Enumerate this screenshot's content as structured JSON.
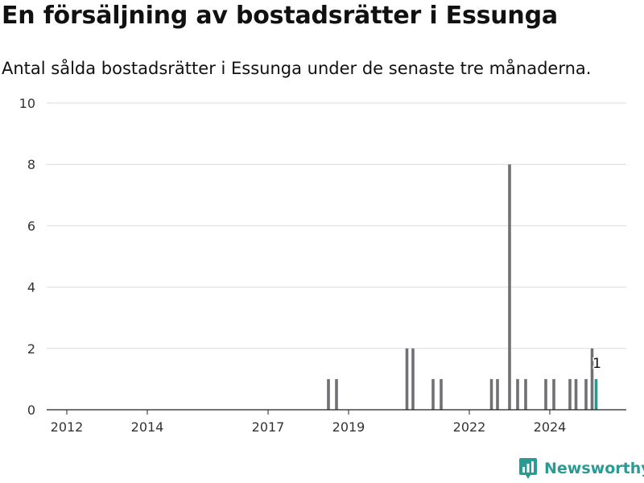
{
  "title": "En försäljning av bostadsrätter i Essunga",
  "subtitle": "Antal sålda bostadsrätter i Essunga under de senaste tre månaderna.",
  "brand": "Newsworthy",
  "colors": {
    "bar": "#707075",
    "highlight": "#1e9c94",
    "grid": "#dcdcdc",
    "axis": "#222222",
    "brand": "#2a9a94"
  },
  "chart_data": {
    "type": "bar",
    "x_axis": {
      "min": 2011.5,
      "max": 2025.9,
      "ticks": [
        "2012",
        "2014",
        "2017",
        "2019",
        "2022",
        "2024"
      ],
      "tick_values": [
        2012,
        2014,
        2017,
        2019,
        2022,
        2024
      ]
    },
    "y_axis": {
      "min": 0,
      "max": 10,
      "ticks": [
        0,
        2,
        4,
        6,
        8,
        10
      ]
    },
    "grid": true,
    "series": [
      {
        "values": [
          {
            "x": 2018.5,
            "y": 1
          },
          {
            "x": 2018.7,
            "y": 1
          },
          {
            "x": 2020.45,
            "y": 2
          },
          {
            "x": 2020.6,
            "y": 2
          },
          {
            "x": 2021.1,
            "y": 1
          },
          {
            "x": 2021.3,
            "y": 1
          },
          {
            "x": 2022.55,
            "y": 1
          },
          {
            "x": 2022.7,
            "y": 1
          },
          {
            "x": 2023.0,
            "y": 8
          },
          {
            "x": 2023.2,
            "y": 1
          },
          {
            "x": 2023.4,
            "y": 1
          },
          {
            "x": 2023.9,
            "y": 1
          },
          {
            "x": 2024.1,
            "y": 1
          },
          {
            "x": 2024.5,
            "y": 1
          },
          {
            "x": 2024.65,
            "y": 1
          },
          {
            "x": 2024.9,
            "y": 1
          },
          {
            "x": 2025.05,
            "y": 2
          },
          {
            "x": 2025.15,
            "y": 1,
            "highlight": true
          }
        ]
      }
    ],
    "annotation": {
      "text": "1"
    }
  }
}
